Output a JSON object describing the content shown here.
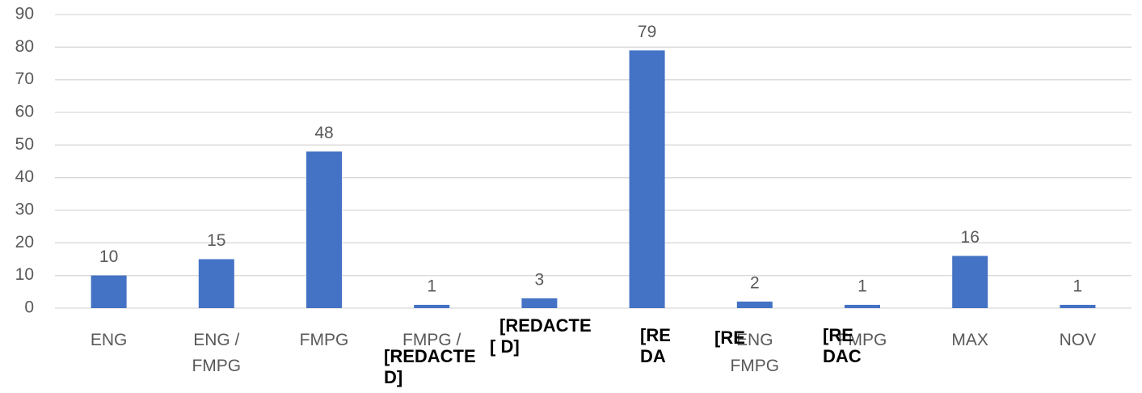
{
  "chart_data": {
    "type": "bar",
    "categories": [
      "ENG",
      "ENG / FMPG",
      "FMPG",
      "FMPG /",
      null,
      null,
      "ENG FMPG",
      "FMPG",
      "MAX",
      "NOV"
    ],
    "values": [
      10,
      15,
      48,
      1,
      3,
      79,
      2,
      1,
      16,
      1
    ],
    "color": "#4472c4",
    "ylim": [
      0,
      90
    ],
    "yticks": [
      0,
      10,
      20,
      30,
      40,
      50,
      60,
      70,
      80,
      90
    ],
    "grid": true,
    "annotations": [
      "[REDACTE",
      "D]",
      "[REDACTE",
      "[ D]",
      "[RE",
      "DA",
      "[RE",
      "[RE",
      "DAC"
    ]
  }
}
